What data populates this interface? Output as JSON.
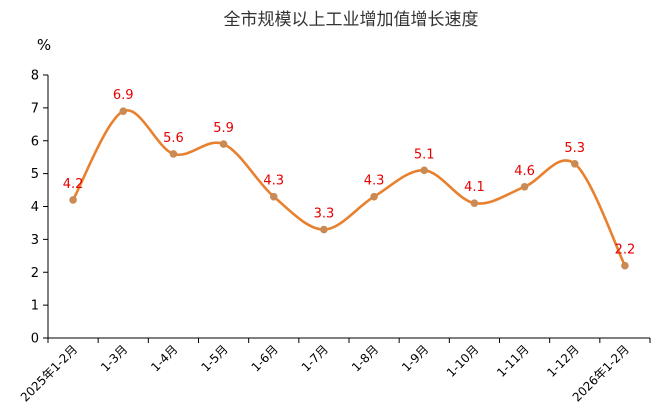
{
  "chart_data": {
    "type": "line",
    "title": "全市规模以上工业增加值增长速度",
    "ylabel": "%",
    "xlabel": "",
    "ylim": [
      0,
      8
    ],
    "yticks": [
      0,
      1,
      2,
      3,
      4,
      5,
      6,
      7,
      8
    ],
    "grid": false,
    "smooth": true,
    "categories": [
      "2025年1-2月",
      "1-3月",
      "1-4月",
      "1-5月",
      "1-6月",
      "1-7月",
      "1-8月",
      "1-9月",
      "1-10月",
      "1-11月",
      "1-12月",
      "2026年1-2月"
    ],
    "series": [
      {
        "values": [
          4.2,
          6.9,
          5.6,
          5.9,
          4.3,
          3.3,
          4.3,
          5.1,
          4.1,
          4.6,
          5.3,
          2.2
        ],
        "data_labels": [
          "4.2",
          "6.9",
          "5.6",
          "5.9",
          "4.3",
          "3.3",
          "4.3",
          "5.1",
          "4.1",
          "4.6",
          "5.3",
          "2.2"
        ],
        "color": "#E8812F",
        "marker_color": "#C98A55",
        "label_color": "#E60000"
      }
    ]
  }
}
